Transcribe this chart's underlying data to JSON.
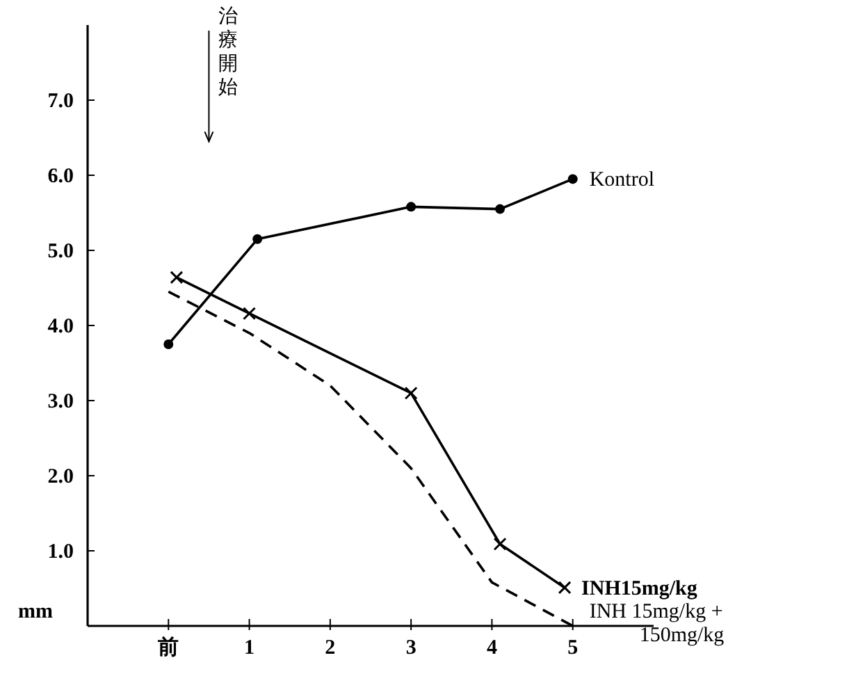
{
  "chart_data": {
    "type": "line",
    "ylabel": "mm",
    "xlim": [
      -1,
      6
    ],
    "xticks": [
      {
        "value": 0,
        "label": "前"
      },
      1,
      2,
      3,
      4,
      5
    ],
    "ylim": [
      0,
      8
    ],
    "yticks": [
      {
        "value": 1,
        "label": "1.0"
      },
      {
        "value": 2,
        "label": "2.0"
      },
      {
        "value": 3,
        "label": "3.0"
      },
      {
        "value": 4,
        "label": "4.0"
      },
      {
        "value": 5,
        "label": "5.0"
      },
      {
        "value": 6,
        "label": "6.0"
      },
      {
        "value": 7,
        "label": "7.0"
      }
    ],
    "grid": false,
    "legend": false,
    "series": [
      {
        "name": "Kontrol",
        "color": "#000000",
        "marker": "circle",
        "line_style": "solid",
        "x": [
          0,
          1.1,
          3,
          4.1,
          5
        ],
        "values": [
          3.75,
          5.15,
          5.58,
          5.55,
          5.95
        ]
      },
      {
        "name": "INH15mg/kg",
        "color": "#000000",
        "marker": "cross",
        "line_style": "solid",
        "x": [
          0.1,
          1,
          3,
          4.1,
          4.9
        ],
        "values": [
          4.64,
          4.16,
          3.1,
          1.09,
          0.51
        ]
      },
      {
        "name": "INH 15mg/kg + 150mg/kg",
        "color": "#000000",
        "marker": "none",
        "line_style": "dashed",
        "x": [
          0,
          1,
          2,
          3,
          4,
          5
        ],
        "values": [
          4.45,
          3.9,
          3.2,
          2.1,
          0.58,
          0
        ]
      }
    ],
    "annotations": [
      "治療開始"
    ]
  }
}
